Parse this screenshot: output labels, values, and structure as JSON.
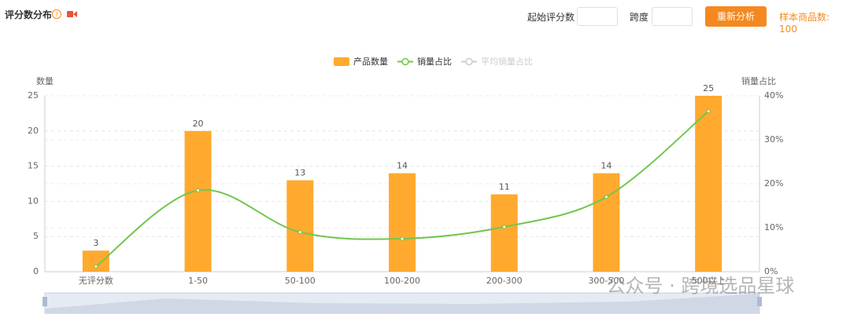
{
  "header": {
    "title": "评分数分布",
    "start_label": "起始评分数",
    "span_label": "跨度",
    "button": "重新分析",
    "sample_label": "样本商品数:",
    "sample_value": 100
  },
  "watermark": "公众号 · 跨境选品星球",
  "chart_data": {
    "type": "bar",
    "categories": [
      "无评分数",
      "1-50",
      "50-100",
      "100-200",
      "200-300",
      "300-500",
      "500以上"
    ],
    "series": [
      {
        "name": "产品数量",
        "type": "bar",
        "color": "#ffaa2e",
        "values": [
          3,
          20,
          13,
          14,
          11,
          14,
          25
        ]
      },
      {
        "name": "销量占比",
        "type": "line",
        "axis": "y2",
        "color": "#72c64e",
        "values": [
          1.2,
          18.5,
          9,
          7.5,
          10.2,
          17,
          36.5
        ]
      },
      {
        "name": "平均销量占比",
        "type": "line",
        "axis": "y2",
        "color": "#cccccc",
        "values": [
          null,
          null,
          null,
          null,
          null,
          null,
          null
        ]
      }
    ],
    "ylabel": "数量",
    "y2label": "销量占比",
    "ylim": [
      0,
      25
    ],
    "yticks": [
      0,
      5,
      10,
      15,
      20,
      25
    ],
    "y2lim": [
      0,
      40
    ],
    "y2ticks": [
      {
        "value": 0,
        "label": "0%"
      },
      {
        "value": 10,
        "label": "10%"
      },
      {
        "value": 20,
        "label": "20%"
      },
      {
        "value": 30,
        "label": "30%"
      },
      {
        "value": 40,
        "label": "40%"
      }
    ],
    "grid": true,
    "legend": "top"
  }
}
